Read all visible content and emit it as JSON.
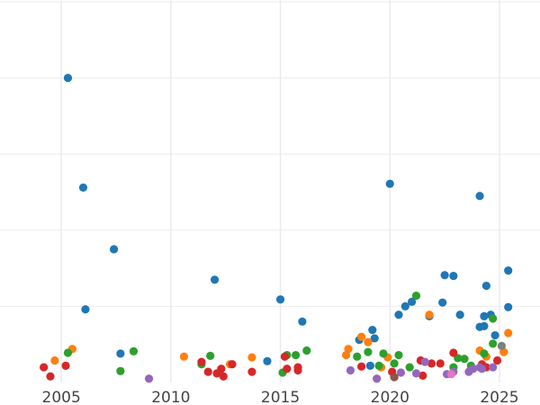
{
  "chart_data": {
    "type": "scatter",
    "title": "",
    "xlabel": "",
    "ylabel": "",
    "xlim": [
      2002.2,
      2026.85
    ],
    "ylim": [
      0,
      5
    ],
    "grid": true,
    "x_ticks": [
      "2005",
      "2010",
      "2015",
      "2020",
      "2025"
    ],
    "x_tick_values": [
      2005,
      2010,
      2015,
      2020,
      2025
    ],
    "y_grid_values": [
      1,
      2,
      3,
      4,
      5
    ],
    "series": [
      {
        "color": "#1f77b4",
        "points": [
          [
            2005.3,
            4.0
          ],
          [
            2006.0,
            2.56
          ],
          [
            2007.4,
            1.75
          ],
          [
            2006.1,
            0.96
          ],
          [
            2007.7,
            0.38
          ],
          [
            2012.0,
            1.35
          ],
          [
            2014.4,
            0.28
          ],
          [
            2015.0,
            1.09
          ],
          [
            2016.0,
            0.8
          ],
          [
            2018.6,
            0.56
          ],
          [
            2019.2,
            0.69
          ],
          [
            2019.3,
            0.58
          ],
          [
            2019.1,
            0.22
          ],
          [
            2020.0,
            2.61
          ],
          [
            2020.4,
            0.89
          ],
          [
            2020.7,
            1.0
          ],
          [
            2021.0,
            1.06
          ],
          [
            2021.8,
            0.87
          ],
          [
            2022.4,
            1.05
          ],
          [
            2022.5,
            1.41
          ],
          [
            2022.9,
            1.4
          ],
          [
            2023.2,
            0.89
          ],
          [
            2024.1,
            2.45
          ],
          [
            2024.1,
            0.73
          ],
          [
            2024.3,
            0.74
          ],
          [
            2024.3,
            0.87
          ],
          [
            2024.4,
            1.27
          ],
          [
            2024.6,
            0.89
          ],
          [
            2024.8,
            0.62
          ],
          [
            2025.4,
            1.47
          ],
          [
            2025.4,
            0.99
          ]
        ]
      },
      {
        "color": "#ff7f0e",
        "points": [
          [
            2004.7,
            0.29
          ],
          [
            2005.5,
            0.44
          ],
          [
            2010.6,
            0.34
          ],
          [
            2012.7,
            0.24
          ],
          [
            2013.7,
            0.33
          ],
          [
            2018.0,
            0.36
          ],
          [
            2018.1,
            0.44
          ],
          [
            2018.7,
            0.6
          ],
          [
            2019.0,
            0.53
          ],
          [
            2019.6,
            0.2
          ],
          [
            2019.9,
            0.33
          ],
          [
            2021.8,
            0.89
          ],
          [
            2024.1,
            0.42
          ],
          [
            2024.4,
            0.34
          ],
          [
            2025.2,
            0.4
          ],
          [
            2025.4,
            0.65
          ]
        ]
      },
      {
        "color": "#2ca02c",
        "points": [
          [
            2005.3,
            0.39
          ],
          [
            2007.7,
            0.15
          ],
          [
            2008.3,
            0.41
          ],
          [
            2011.4,
            0.24
          ],
          [
            2011.8,
            0.35
          ],
          [
            2015.1,
            0.13
          ],
          [
            2015.3,
            0.36
          ],
          [
            2015.7,
            0.36
          ],
          [
            2016.2,
            0.42
          ],
          [
            2018.5,
            0.34
          ],
          [
            2019.0,
            0.4
          ],
          [
            2019.5,
            0.22
          ],
          [
            2019.7,
            0.38
          ],
          [
            2020.2,
            0.25
          ],
          [
            2020.4,
            0.36
          ],
          [
            2020.9,
            0.2
          ],
          [
            2021.2,
            1.14
          ],
          [
            2023.1,
            0.32
          ],
          [
            2023.4,
            0.31
          ],
          [
            2023.7,
            0.22
          ],
          [
            2024.3,
            0.38
          ],
          [
            2024.7,
            0.51
          ],
          [
            2024.7,
            0.84
          ],
          [
            2022.9,
            0.2
          ]
        ]
      },
      {
        "color": "#d62728",
        "points": [
          [
            2004.2,
            0.2
          ],
          [
            2004.5,
            0.08
          ],
          [
            2005.2,
            0.22
          ],
          [
            2011.4,
            0.27
          ],
          [
            2011.7,
            0.14
          ],
          [
            2012.1,
            0.12
          ],
          [
            2012.3,
            0.18
          ],
          [
            2012.4,
            0.08
          ],
          [
            2012.8,
            0.24
          ],
          [
            2013.7,
            0.14
          ],
          [
            2015.2,
            0.34
          ],
          [
            2015.3,
            0.18
          ],
          [
            2015.8,
            0.2
          ],
          [
            2015.8,
            0.16
          ],
          [
            2018.7,
            0.21
          ],
          [
            2020.1,
            0.14
          ],
          [
            2021.4,
            0.29
          ],
          [
            2021.5,
            0.09
          ],
          [
            2021.9,
            0.25
          ],
          [
            2022.3,
            0.25
          ],
          [
            2022.9,
            0.39
          ],
          [
            2024.2,
            0.24
          ],
          [
            2024.4,
            0.2
          ],
          [
            2024.9,
            0.29
          ]
        ]
      },
      {
        "color": "#9467bd",
        "points": [
          [
            2009.0,
            0.05
          ],
          [
            2018.2,
            0.16
          ],
          [
            2019.4,
            0.05
          ],
          [
            2020.5,
            0.13
          ],
          [
            2021.2,
            0.12
          ],
          [
            2021.6,
            0.27
          ],
          [
            2022.6,
            0.11
          ],
          [
            2022.9,
            0.14
          ],
          [
            2023.6,
            0.14
          ],
          [
            2023.8,
            0.18
          ],
          [
            2024.1,
            0.2
          ],
          [
            2024.2,
            0.18
          ],
          [
            2024.7,
            0.2
          ]
        ]
      },
      {
        "color": "#8c564b",
        "points": [
          [
            2020.2,
            0.07
          ]
        ]
      },
      {
        "color": "#e377c2",
        "points": [
          [
            2022.8,
            0.11
          ]
        ]
      },
      {
        "color": "#7f7f7f",
        "points": [
          [
            2025.1,
            0.48
          ]
        ]
      }
    ]
  }
}
